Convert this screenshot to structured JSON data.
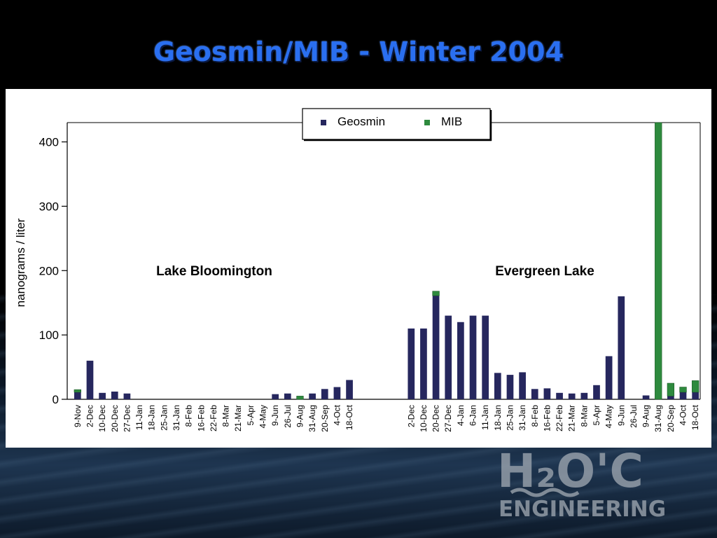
{
  "slide": {
    "title": "Geosmin/MIB - Winter 2004"
  },
  "logo": {
    "text_h2o": "H2O'C",
    "text_engineering": "ENGINEERING"
  },
  "colors": {
    "geosmin": "#26275e",
    "mib": "#2e8a3e",
    "title": "#2a6ff0"
  },
  "chart_data": {
    "type": "bar",
    "stacked": true,
    "ylabel": "nanograms / liter",
    "ylim": [
      0,
      430
    ],
    "yticks": [
      0,
      100,
      200,
      300,
      400
    ],
    "grid": false,
    "legend_position": "top-center",
    "series": [
      {
        "name": "Geosmin"
      },
      {
        "name": "MIB"
      }
    ],
    "groups": [
      {
        "label": "Lake Bloomington",
        "categories": [
          "9-Nov",
          "2-Dec",
          "10-Dec",
          "20-Dec",
          "27-Dec",
          "11-Jan",
          "18-Jan",
          "25-Jan",
          "31-Jan",
          "8-Feb",
          "16-Feb",
          "22-Feb",
          "8-Mar",
          "21-Mar",
          "5-Apr",
          "4-May",
          "9-Jun",
          "26-Jul",
          "9-Aug",
          "31-Aug",
          "20-Sep",
          "4-Oct",
          "18-Oct"
        ],
        "geosmin": [
          11,
          60,
          10,
          12,
          9,
          0,
          0,
          0,
          0,
          0,
          0,
          0,
          0,
          0,
          0,
          0,
          8,
          9,
          0,
          9,
          16,
          19,
          30
        ],
        "mib": [
          4,
          0,
          0,
          0,
          0,
          0,
          0,
          0,
          0,
          0,
          0,
          0,
          0,
          0,
          0,
          0,
          0,
          0,
          5,
          0,
          0,
          0,
          0
        ]
      },
      {
        "label": "Evergreen Lake",
        "categories": [
          "2-Dec",
          "10-Dec",
          "20-Dec",
          "27-Dec",
          "4-Jan",
          "6-Jan",
          "11-Jan",
          "18-Jan",
          "25-Jan",
          "31-Jan",
          "8-Feb",
          "16-Feb",
          "22-Feb",
          "21-Mar",
          "8-Mar",
          "5-Apr",
          "4-May",
          "9-Jun",
          "26-Jul",
          "9-Aug",
          "31-Aug",
          "20-Sep",
          "4-Oct",
          "18-Oct"
        ],
        "geosmin": [
          110,
          110,
          161,
          130,
          120,
          130,
          130,
          41,
          38,
          42,
          16,
          17,
          10,
          9,
          10,
          22,
          67,
          160,
          0,
          6,
          0,
          5,
          11,
          11
        ],
        "mib": [
          0,
          0,
          7,
          0,
          0,
          0,
          0,
          0,
          0,
          0,
          0,
          0,
          0,
          0,
          0,
          0,
          0,
          0,
          0,
          0,
          430,
          20,
          8,
          18
        ]
      }
    ]
  }
}
